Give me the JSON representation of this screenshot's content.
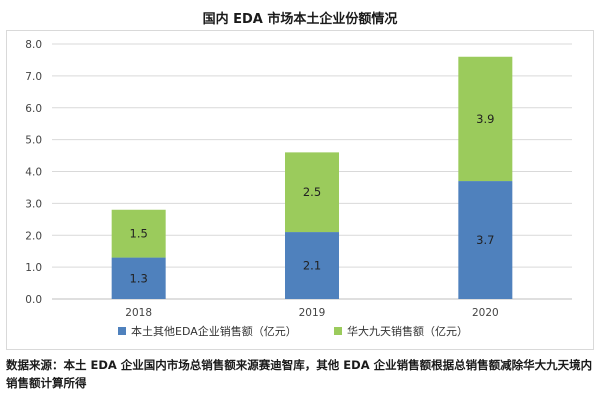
{
  "chart_data": {
    "type": "bar",
    "stacked": true,
    "title": "国内 EDA 市场本土企业份额情况",
    "categories": [
      "2018",
      "2019",
      "2020"
    ],
    "series": [
      {
        "name": "本土其他EDA企业销售额（亿元）",
        "values": [
          1.3,
          2.1,
          3.7
        ],
        "color": "#4f81bd"
      },
      {
        "name": "华大九天销售额（亿元）",
        "values": [
          1.5,
          2.5,
          3.9
        ],
        "color": "#9bcb5c"
      }
    ],
    "ylim": [
      0,
      8
    ],
    "yticks": [
      "0.0",
      "1.0",
      "2.0",
      "3.0",
      "4.0",
      "5.0",
      "6.0",
      "7.0",
      "8.0"
    ],
    "xlabel": "",
    "ylabel": "",
    "grid": "horizontal",
    "legend": "bottom"
  },
  "footnote": "数据来源：本土 EDA 企业国内市场总销售额来源赛迪智库，其他 EDA 企业销售额根据总销售额减除华大九天境内销售额计算所得"
}
